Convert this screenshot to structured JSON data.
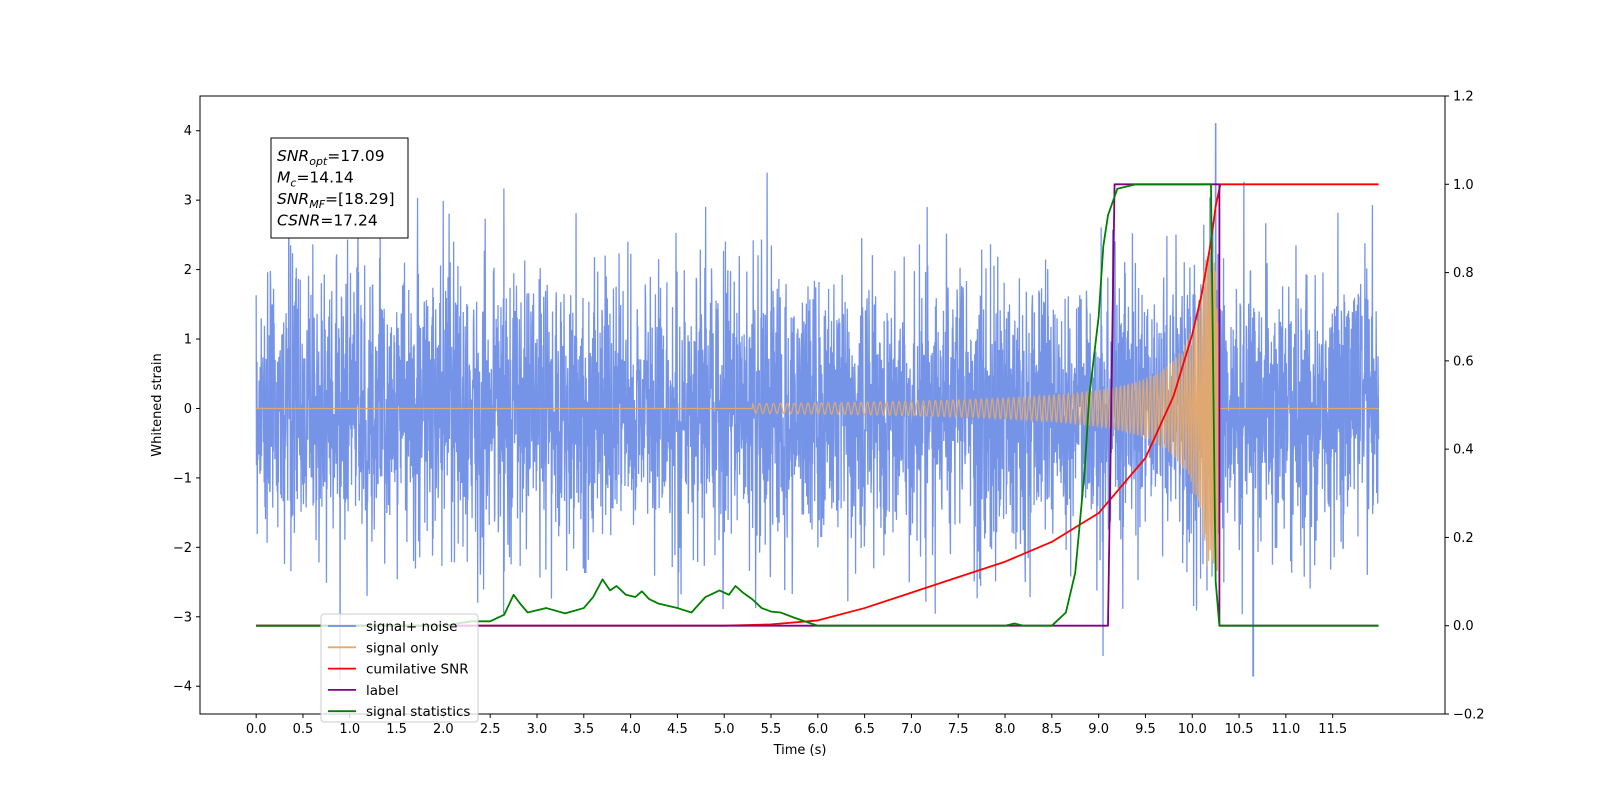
{
  "chart_data": {
    "type": "line",
    "xlabel": "Time (s)",
    "ylabel": "Whitened strain",
    "xlim": [
      -0.6,
      12.7
    ],
    "ylim": [
      -4.4,
      4.5
    ],
    "y2lim": [
      -0.2,
      1.2
    ],
    "xticks": [
      "0.0",
      "0.5",
      "1.0",
      "1.5",
      "2.0",
      "2.5",
      "3.0",
      "3.5",
      "4.0",
      "4.5",
      "5.0",
      "5.5",
      "6.0",
      "6.5",
      "7.0",
      "7.5",
      "8.0",
      "8.5",
      "9.0",
      "9.5",
      "10.0",
      "10.5",
      "11.0",
      "11.5"
    ],
    "yticks": [
      "4",
      "3",
      "2",
      "1",
      "0",
      "−1",
      "−2",
      "−3",
      "−4"
    ],
    "y2ticks": [
      "1.2",
      "1.0",
      "0.8",
      "0.6",
      "0.4",
      "0.2",
      "0.0",
      "−0.2"
    ],
    "grid": false,
    "legend_position": "lower-left",
    "annotation": {
      "lines": [
        {
          "base": "SNR",
          "sub": "opt",
          "rest": "=17.09"
        },
        {
          "base": "M",
          "sub": "c",
          "rest": "=14.14"
        },
        {
          "base": "SNR",
          "sub": "MF",
          "rest": "=[18.29]"
        },
        {
          "base": "CSNR",
          "sub": "",
          "rest": "=17.24"
        }
      ]
    },
    "series": [
      {
        "name": "signal+ noise",
        "axis": "left",
        "color": "#6f8ee6",
        "note": "noise of unit amplitude spanning x 0.0 to 11.99, peaks up to about 4.1 near x=10.25, dips to about -3.85 near x=10.65"
      },
      {
        "name": "signal only",
        "axis": "left",
        "color": "#e5a96b",
        "note": "chirp starting near 5.5 growing to amplitude about 2.3 at x=10.25, zero afterwards"
      },
      {
        "name": "cumilative SNR",
        "axis": "right",
        "color": "#ff0000",
        "x": [
          0.0,
          5.0,
          5.5,
          6.0,
          6.5,
          7.0,
          7.5,
          8.0,
          8.5,
          9.0,
          9.5,
          9.8,
          10.0,
          10.1,
          10.2,
          10.25,
          10.3,
          11.99
        ],
        "y": [
          0.0,
          0.0,
          0.003,
          0.012,
          0.04,
          0.075,
          0.11,
          0.145,
          0.19,
          0.255,
          0.38,
          0.52,
          0.66,
          0.75,
          0.87,
          0.95,
          1.0,
          1.0
        ]
      },
      {
        "name": "label",
        "axis": "right",
        "color": "#800080",
        "x": [
          0.0,
          9.1,
          9.17,
          10.29,
          10.29,
          11.99
        ],
        "y": [
          0.0,
          0.0,
          1.0,
          1.0,
          0.0,
          0.0
        ]
      },
      {
        "name": "signal statistics",
        "axis": "right",
        "color": "#008000",
        "x": [
          0.0,
          1.0,
          2.0,
          2.3,
          2.5,
          2.65,
          2.75,
          2.82,
          2.9,
          3.0,
          3.1,
          3.3,
          3.5,
          3.6,
          3.7,
          3.78,
          3.85,
          3.95,
          4.05,
          4.12,
          4.2,
          4.3,
          4.5,
          4.65,
          4.8,
          4.95,
          5.05,
          5.12,
          5.2,
          5.3,
          5.4,
          5.5,
          5.6,
          5.75,
          5.9,
          6.0,
          6.2,
          8.0,
          8.1,
          8.2,
          8.5,
          8.65,
          8.75,
          8.85,
          8.9,
          9.0,
          9.05,
          9.1,
          9.2,
          9.4,
          10.2,
          10.25,
          10.29,
          10.3,
          11.99
        ],
        "y": [
          0.0,
          0.0,
          0.0,
          0.01,
          0.01,
          0.025,
          0.07,
          0.05,
          0.03,
          0.035,
          0.04,
          0.028,
          0.04,
          0.065,
          0.105,
          0.08,
          0.09,
          0.07,
          0.065,
          0.078,
          0.06,
          0.05,
          0.04,
          0.03,
          0.065,
          0.08,
          0.07,
          0.09,
          0.075,
          0.06,
          0.04,
          0.032,
          0.03,
          0.018,
          0.007,
          0.0,
          0.0,
          0.0,
          0.005,
          0.0,
          0.0,
          0.03,
          0.12,
          0.35,
          0.52,
          0.7,
          0.86,
          0.93,
          0.99,
          1.0,
          1.0,
          0.1,
          0.0,
          0.0,
          0.0
        ]
      }
    ]
  }
}
